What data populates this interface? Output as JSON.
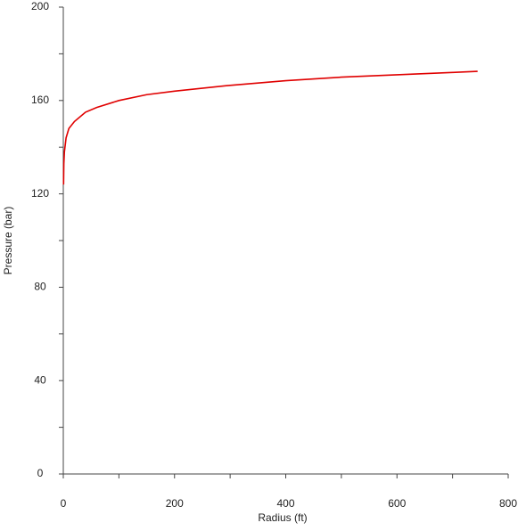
{
  "chart_data": {
    "type": "line",
    "xlabel": "Radius (ft)",
    "ylabel": "Pressure (bar)",
    "x": [
      0.5,
      1,
      2,
      5,
      10,
      20,
      40,
      60,
      100,
      150,
      200,
      300,
      400,
      500,
      600,
      700,
      745
    ],
    "series": [
      {
        "color": "#e00000",
        "values": [
          124,
          133,
          138,
          144,
          148,
          151,
          155,
          157,
          160,
          162.5,
          164,
          166.5,
          168.5,
          170,
          171,
          172,
          172.5
        ]
      }
    ],
    "xlim": [
      0,
      800
    ],
    "xticks": [
      0,
      200,
      400,
      600,
      800
    ],
    "ylim": [
      0,
      200
    ],
    "yticks": [
      0,
      40,
      80,
      120,
      160,
      200
    ]
  }
}
